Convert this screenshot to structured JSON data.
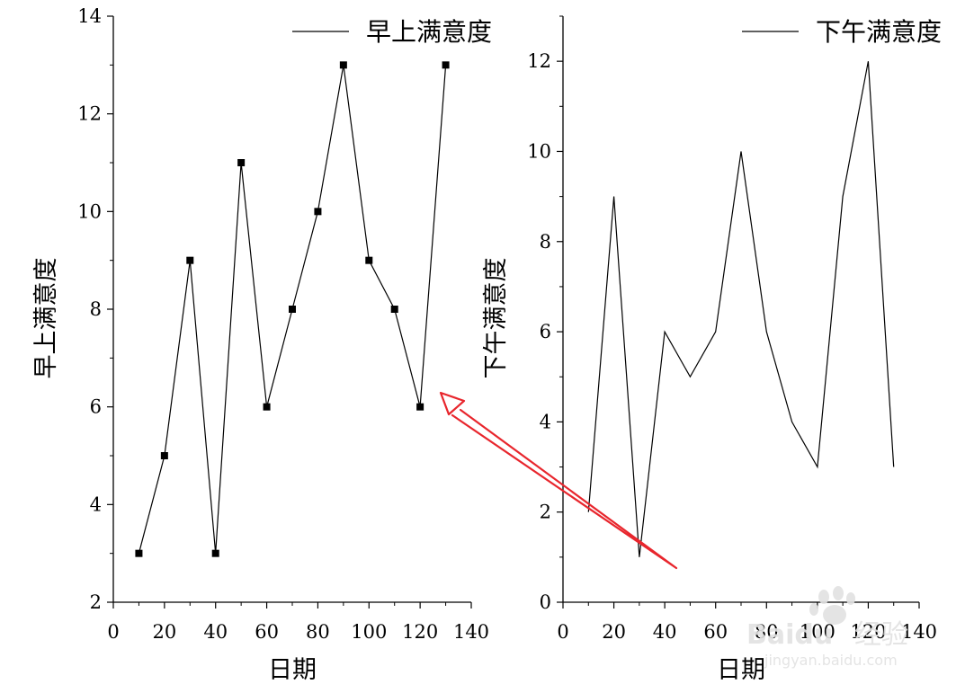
{
  "chart_data": [
    {
      "type": "line",
      "markers": true,
      "x": [
        10,
        20,
        30,
        40,
        50,
        60,
        70,
        80,
        90,
        100,
        110,
        120,
        130
      ],
      "series": [
        {
          "name": "早上满意度",
          "values": [
            3,
            5,
            9,
            3,
            11,
            6,
            8,
            10,
            13,
            9,
            8,
            6,
            13
          ]
        }
      ],
      "xlabel": "日期",
      "ylabel": "早上满意度",
      "xlim": [
        0,
        140
      ],
      "ylim": [
        2,
        14
      ],
      "x_ticks": [
        "0",
        "20",
        "40",
        "60",
        "80",
        "100",
        "120",
        "140"
      ],
      "y_ticks": [
        "2",
        "4",
        "6",
        "8",
        "10",
        "12",
        "14"
      ],
      "legend": "top-right",
      "grid": false
    },
    {
      "type": "line",
      "markers": false,
      "x": [
        10,
        20,
        30,
        40,
        50,
        60,
        70,
        80,
        90,
        100,
        110,
        120,
        130
      ],
      "series": [
        {
          "name": "下午满意度",
          "values": [
            2,
            9,
            1,
            6,
            5,
            6,
            10,
            6,
            4,
            3,
            9,
            12,
            3
          ]
        }
      ],
      "xlabel": "日期",
      "ylabel": "下午满意度",
      "xlim": [
        0,
        140
      ],
      "ylim": [
        0,
        13
      ],
      "x_ticks": [
        "0",
        "20",
        "40",
        "60",
        "80",
        "100",
        "120",
        "140"
      ],
      "y_ticks": [
        "0",
        "2",
        "4",
        "6",
        "8",
        "10",
        "12"
      ],
      "legend": "top-right",
      "grid": false
    }
  ],
  "annotation": {
    "type": "arrow",
    "color": "#e8262d"
  },
  "watermark": {
    "brand": "Baidu",
    "name": "经验",
    "url": "jingyan.baidu.com",
    "color": "#e2e2e2"
  }
}
